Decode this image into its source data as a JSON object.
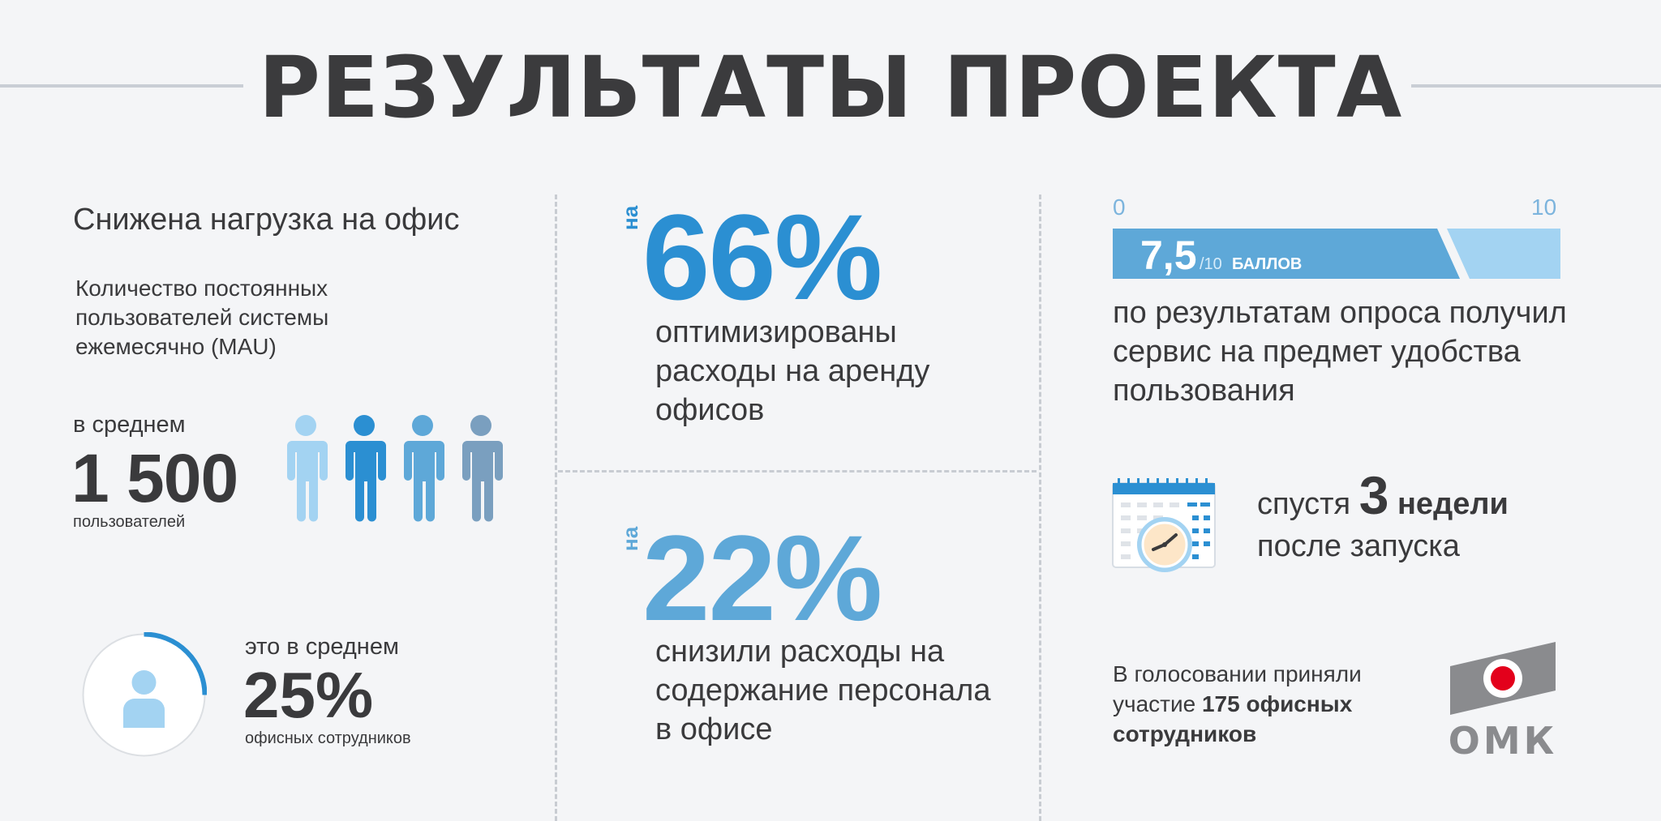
{
  "title": "РЕЗУЛЬТАТЫ ПРОЕКТА",
  "colors": {
    "accent_dark": "#2b8fd2",
    "accent_mid": "#5ea8d8",
    "accent_light": "#a3d3f2",
    "accent_steel": "#7a9fbf",
    "text": "#3a3a3c",
    "omk_red": "#e3001b",
    "omk_gray": "#8a8b8e"
  },
  "col1": {
    "heading": "Снижена нагрузка на офис",
    "subheading": "Количество постоянных пользователей системы ежемесячно (MAU)",
    "avg_label": "в среднем",
    "users_value": "1 500",
    "users_label": "пользователей",
    "share_prefix": "это в среднем",
    "share_value": "25%",
    "share_fraction": 0.25,
    "share_label": "офисных сотрудников"
  },
  "col2": {
    "top": {
      "prefix": "на",
      "value": "66%",
      "text": "оптимизированы расходы на аренду офисов"
    },
    "bottom": {
      "prefix": "на",
      "value": "22%",
      "text": "снизили расходы на содержание персонала в офисе"
    }
  },
  "col3": {
    "scale_min": "0",
    "scale_max": "10",
    "score_value": "7,5",
    "score_max_suffix": "/10",
    "score_unit": "БАЛЛОВ",
    "score_fraction": 0.75,
    "survey_text": "по результатам опроса получил сервис на предмет удобства пользования",
    "weeks_prefix": "спустя",
    "weeks_number": "3",
    "weeks_word": "недели",
    "weeks_suffix": "после запуска",
    "vote_prefix": "В голосовании приняли участие",
    "vote_bold": "175 офисных сотрудников",
    "logo_text": "ОМК"
  }
}
